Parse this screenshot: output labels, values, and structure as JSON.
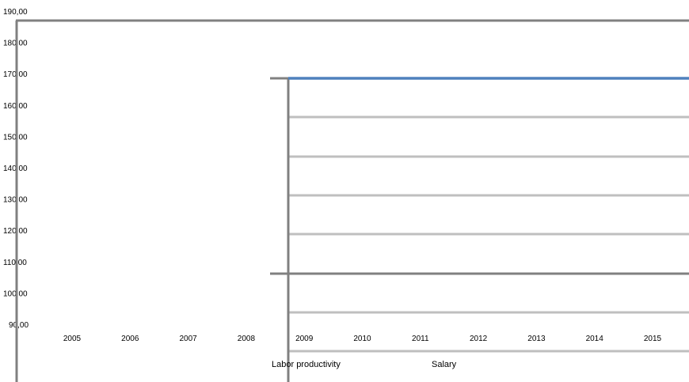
{
  "chart_data": {
    "type": "line",
    "categories": [
      "2005",
      "2006",
      "2007",
      "2008",
      "2009",
      "2010",
      "2011",
      "2012",
      "2013",
      "2014",
      "2015"
    ],
    "y_ticks": [
      "190,00",
      "180,00",
      "170,00",
      "160,00",
      "150,00",
      "140,00",
      "130,00",
      "120,00",
      "110,00",
      "100,00",
      "90,00"
    ],
    "ylim": [
      90,
      190
    ],
    "grid": true,
    "legend_position": "bottom",
    "series": [
      {
        "name": "Labor productivity",
        "color": "#4f81bd"
      },
      {
        "name": "Salary",
        "color": "#a6a6a6"
      }
    ],
    "title": "",
    "xlabel": "",
    "ylabel": ""
  },
  "colors": {
    "axis": "#808080",
    "gridline": "#bfbfbf",
    "accent_line": "#4f81bd"
  }
}
